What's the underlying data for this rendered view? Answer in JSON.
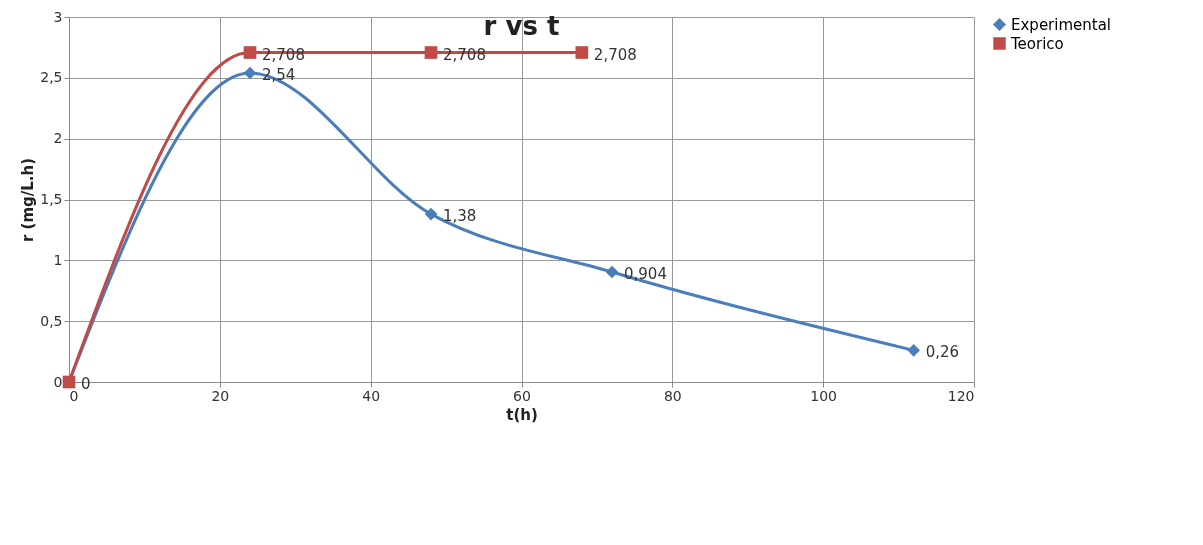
{
  "chart_data": {
    "type": "line",
    "title": "r vs t",
    "xlabel": "t(h)",
    "ylabel": "r (mg/L.h)",
    "xlim": [
      0,
      120
    ],
    "xticks": [
      0,
      20,
      40,
      60,
      80,
      100,
      120
    ],
    "ylim": [
      0,
      3
    ],
    "yticks": [
      0,
      {
        "value": 0.5,
        "label": "0,5"
      },
      1,
      {
        "value": 1.5,
        "label": "1,5"
      },
      2,
      {
        "value": 2.5,
        "label": "2,5"
      },
      3
    ],
    "grid": true,
    "legend": "right",
    "series": [
      {
        "name": "Experimental",
        "color": "#4a7ebb",
        "marker": "diamond",
        "x": [
          0,
          24,
          48,
          72,
          112
        ],
        "values": [
          0,
          2.54,
          1.38,
          0.904,
          0.26
        ],
        "value_labels": [
          null,
          "2,54",
          "1,38",
          "0,904",
          "0,26"
        ]
      },
      {
        "name": "Teorico",
        "color": "#be4b48",
        "marker": "square",
        "x": [
          0,
          24,
          48,
          68
        ],
        "values": [
          0,
          2.708,
          2.708,
          2.708
        ],
        "value_labels": [
          "0",
          "2,708",
          "2,708",
          "2,708"
        ]
      }
    ]
  }
}
